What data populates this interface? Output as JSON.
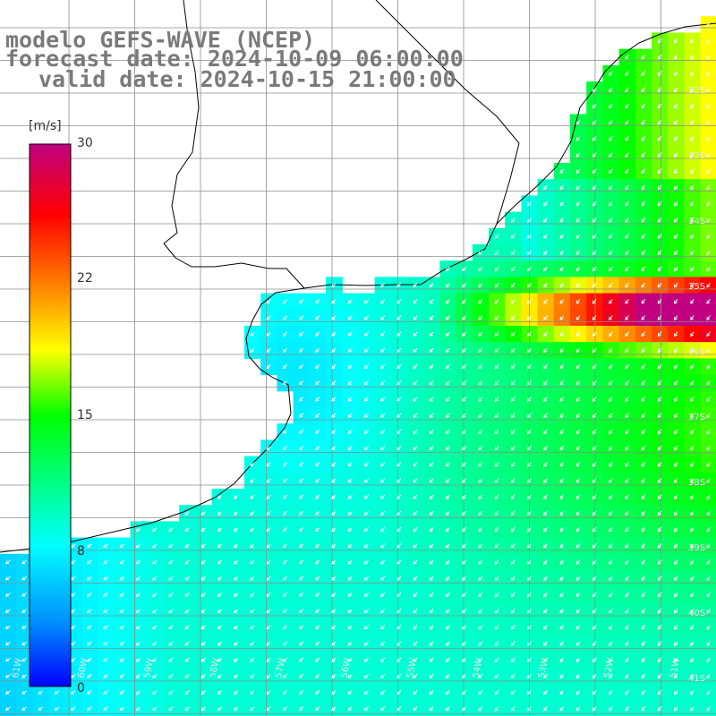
{
  "title": {
    "line1": "modelo GEFS-WAVE (NCEP)",
    "line2": "forecast date: 2024-10-09 06:00:00",
    "line3": "valid date: 2024-10-15 21:00:00"
  },
  "colorbar": {
    "unit": "[m/s]",
    "ticks": [
      "30",
      "22",
      "15",
      "8",
      "0"
    ],
    "min": 0,
    "max": 30,
    "colors": [
      "#0000ff",
      "#0090ff",
      "#00ffff",
      "#00ff00",
      "#ffff00",
      "#ff8000",
      "#ff0000",
      "#c00080"
    ]
  },
  "lat_labels": [
    "32S",
    "33S",
    "34S",
    "35S",
    "36S",
    "37S",
    "38S",
    "39S",
    "40S",
    "41S"
  ],
  "lon_labels": [
    "61W",
    "60W",
    "59W",
    "58W",
    "57W",
    "56W",
    "55W",
    "54W",
    "53W",
    "52W",
    "51W"
  ],
  "colors": {
    "land": "#ffffff",
    "grid": "#8c8c8c",
    "coast": "#000000",
    "title": "#7a7a7a",
    "arrow": "#ffffff"
  }
}
